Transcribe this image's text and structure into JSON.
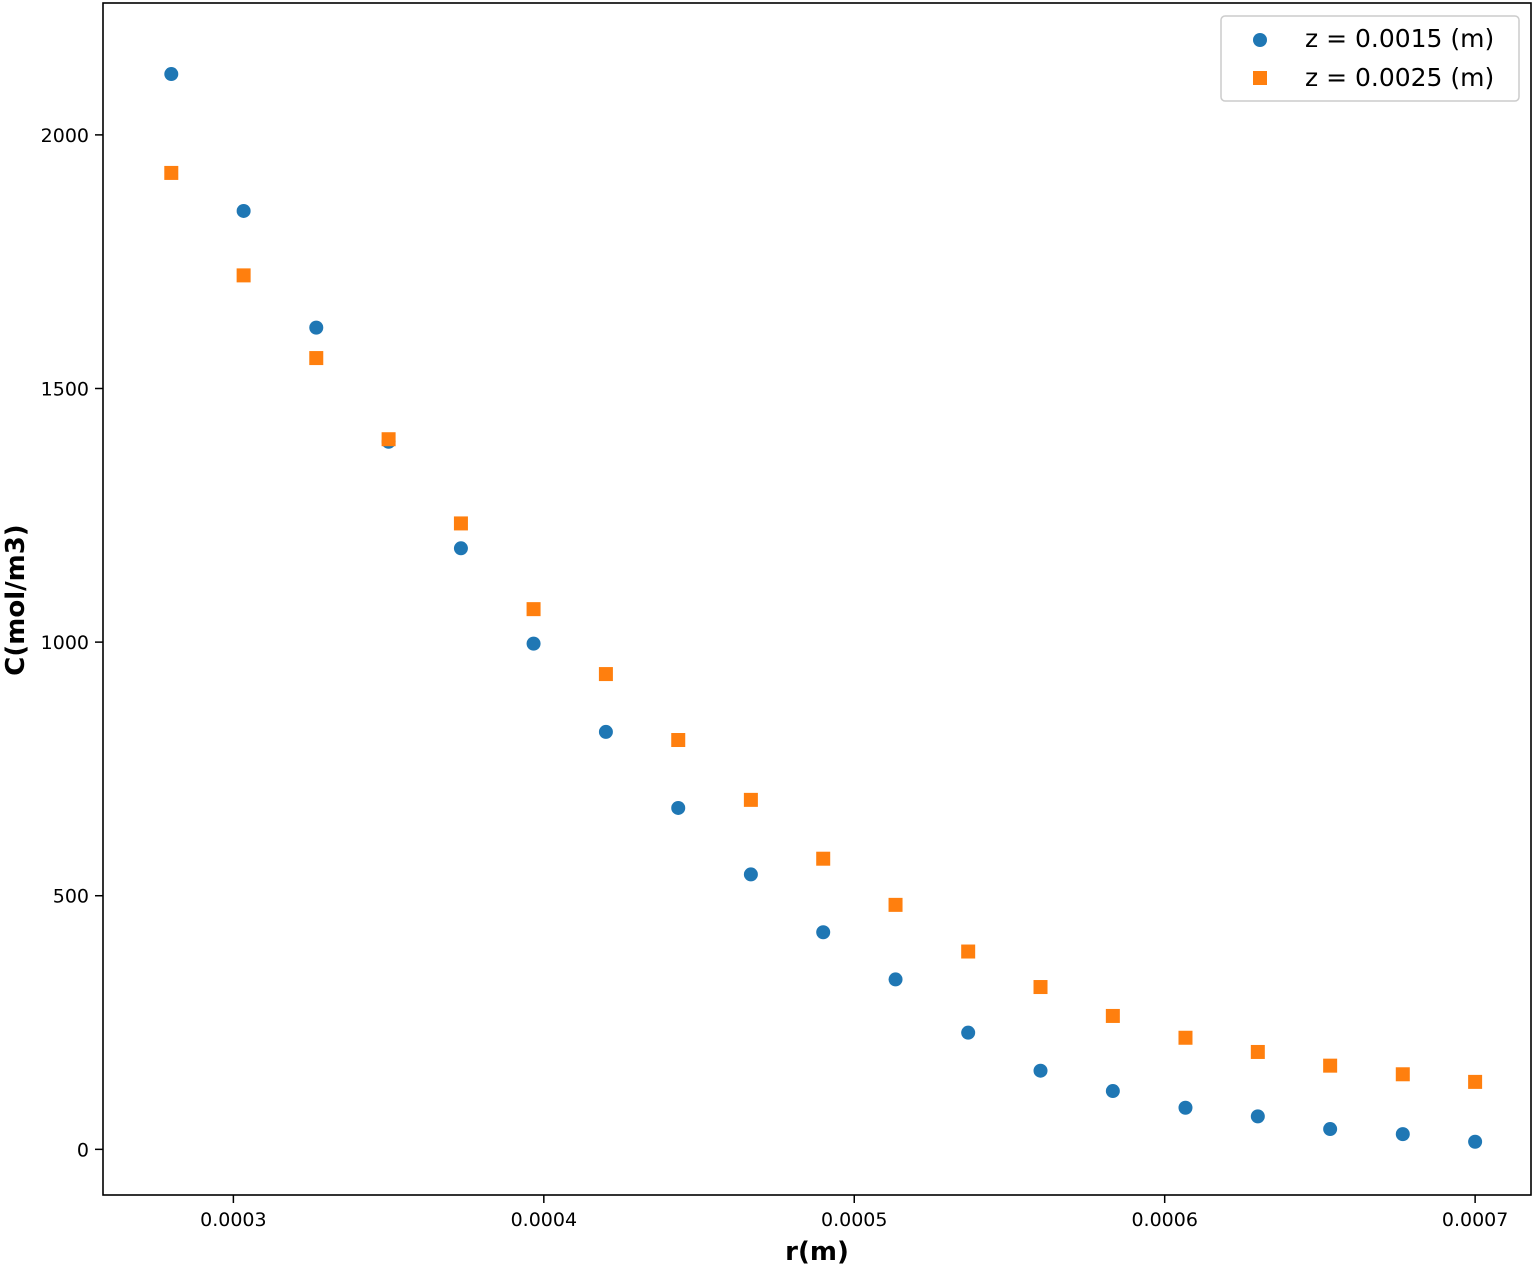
{
  "chart_data": {
    "type": "scatter",
    "title": "",
    "xlabel": "r(m)",
    "ylabel": "C(mol/m3)",
    "xlim": [
      0.000258,
      0.000718
    ],
    "ylim": [
      -90,
      2260
    ],
    "xticks": [
      0.0003,
      0.0004,
      0.0005,
      0.0006,
      0.0007
    ],
    "xtick_labels": [
      "0.0003",
      "0.0004",
      "0.0005",
      "0.0006",
      "0.0007"
    ],
    "yticks": [
      0,
      500,
      1000,
      1500,
      2000
    ],
    "ytick_labels": [
      "0",
      "500",
      "1000",
      "1500",
      "2000"
    ],
    "grid": false,
    "legend_position": "top-right",
    "x": [
      0.00028,
      0.0003033,
      0.0003267,
      0.00035,
      0.0003733,
      0.0003967,
      0.00042,
      0.0004433,
      0.0004667,
      0.00049,
      0.0005133,
      0.0005367,
      0.00056,
      0.0005833,
      0.0006067,
      0.00063,
      0.0006533,
      0.0006767,
      0.0007
    ],
    "series": [
      {
        "name": "z = 0.0015 (m)",
        "marker": "circle",
        "color": "#1f77b4",
        "values": [
          2120,
          1850,
          1620,
          1395,
          1185,
          997,
          823,
          673,
          542,
          428,
          335,
          230,
          155,
          115,
          82,
          65,
          40,
          30,
          15
        ]
      },
      {
        "name": "z = 0.0025 (m)",
        "marker": "square",
        "color": "#ff7f0e",
        "values": [
          1925,
          1723,
          1560,
          1400,
          1234,
          1065,
          937,
          807,
          689,
          573,
          482,
          390,
          320,
          263,
          220,
          192,
          165,
          148,
          133
        ]
      }
    ]
  }
}
